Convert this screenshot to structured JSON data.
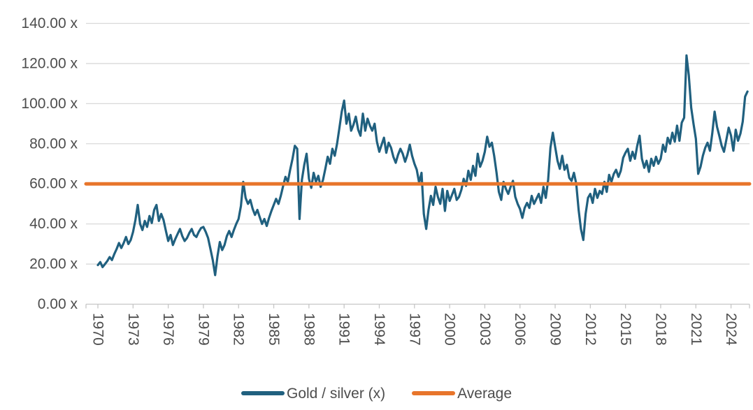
{
  "chart_data": {
    "type": "line",
    "legend_position": "bottom",
    "grid": "horizontal",
    "x_axis": {
      "labels": [
        "1970",
        "1973",
        "1976",
        "1979",
        "1982",
        "1985",
        "1988",
        "1991",
        "1994",
        "1997",
        "2000",
        "2003",
        "2006",
        "2009",
        "2012",
        "2015",
        "2018",
        "2021",
        "2024"
      ],
      "label_rotation_deg": 90,
      "range_years": [
        1969,
        2026
      ]
    },
    "y_axis": {
      "values": [
        0,
        20,
        40,
        60,
        80,
        100,
        120,
        140
      ],
      "labels": [
        "0.00 x",
        "20.00 x",
        "40.00 x",
        "60.00 x",
        "80.00 x",
        "100.00 x",
        "120.00 x",
        "140.00 x"
      ],
      "range": [
        0,
        140
      ]
    },
    "series": [
      {
        "name": "Gold / silver (x)",
        "color": "#20607f",
        "start_year": 1970.0,
        "step_years": 0.2,
        "values": [
          19.5,
          21,
          18.5,
          20,
          21.5,
          23.5,
          22,
          25,
          27.5,
          30.5,
          28,
          30.5,
          33.5,
          30,
          32,
          36,
          42,
          49.5,
          40,
          37,
          41.5,
          38.5,
          44,
          40.5,
          47,
          49.5,
          41.5,
          45,
          42,
          36.5,
          31.5,
          34.5,
          29.5,
          32.5,
          35,
          37.5,
          34,
          31.5,
          33,
          35.5,
          37.5,
          34.5,
          33.5,
          36,
          38,
          38.5,
          36,
          33,
          27.5,
          22,
          14.5,
          24,
          31,
          27,
          29.5,
          34,
          36.5,
          33.5,
          37,
          40,
          42.5,
          49,
          61,
          53,
          50,
          52,
          47.5,
          44.5,
          47,
          43.5,
          40,
          42.5,
          39,
          43,
          46.5,
          49.5,
          52.5,
          50,
          54,
          59,
          63.5,
          61,
          67,
          72.5,
          79,
          77.5,
          42.5,
          62,
          69.5,
          75,
          62.5,
          58,
          65.5,
          61,
          64,
          58.5,
          62,
          67.5,
          73.5,
          70,
          77.5,
          74,
          80,
          88,
          96,
          101.5,
          90,
          95,
          86.5,
          89.5,
          93.5,
          87,
          84,
          95,
          86.5,
          92.5,
          89,
          86.5,
          90,
          81,
          76,
          79.5,
          83,
          75.5,
          80.5,
          78,
          73.5,
          70.5,
          74.5,
          77.5,
          75,
          71,
          74.5,
          79.5,
          74,
          70,
          67,
          60.5,
          65.5,
          45,
          37.5,
          47,
          54,
          49.5,
          58.5,
          53.5,
          50,
          57.5,
          46.5,
          56.5,
          51.5,
          54.5,
          57.5,
          52,
          53.5,
          57,
          62.5,
          59,
          66.5,
          62,
          69,
          64,
          75,
          68.5,
          71.5,
          76,
          83.5,
          78.5,
          80.5,
          74,
          65.5,
          56,
          52,
          61,
          57.5,
          55,
          58.5,
          61.5,
          53.5,
          50,
          47.5,
          43,
          48,
          50.5,
          48,
          54,
          50,
          52.5,
          55,
          50.5,
          58.5,
          53,
          62,
          78,
          85.5,
          78.5,
          71.5,
          67.5,
          74,
          67,
          69.5,
          63,
          61.5,
          65.5,
          60,
          47,
          37.5,
          32,
          45,
          53,
          55,
          50.5,
          57.5,
          53,
          56.5,
          55,
          61,
          56,
          64.5,
          61,
          65,
          67,
          63.5,
          66.5,
          73,
          75.5,
          77.5,
          71.5,
          76,
          72.5,
          79,
          84,
          72.5,
          68,
          71.5,
          66,
          72.5,
          69,
          73.5,
          70,
          72.5,
          79.5,
          76,
          83,
          80,
          85.5,
          81,
          89,
          81.5,
          90.5,
          93,
          124,
          114,
          98,
          90,
          82.5,
          65,
          68.5,
          74,
          78,
          80.5,
          76.5,
          85,
          96,
          88.5,
          84,
          79,
          76,
          82,
          88,
          84,
          76.5,
          87,
          81.5,
          85,
          91,
          103.5,
          106
        ]
      },
      {
        "name": "Average",
        "color": "#e8752b",
        "constant_value": 60
      }
    ]
  }
}
